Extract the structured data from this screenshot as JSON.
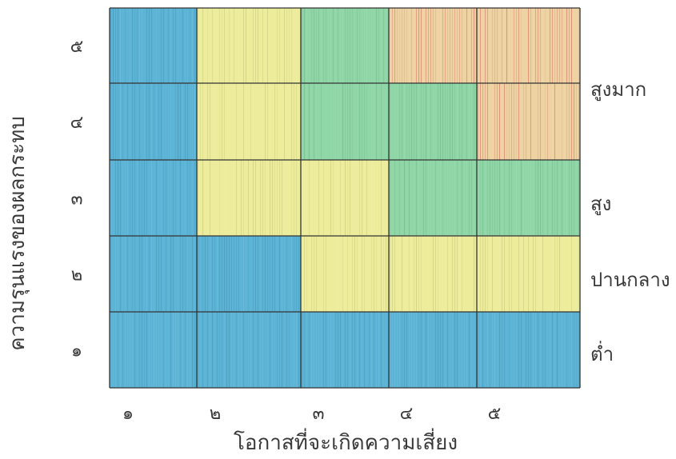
{
  "chart_data": {
    "type": "heatmap",
    "title": "",
    "xlabel": "โอกาสที่จะเกิดความเสี่ยง",
    "ylabel": "ความรุนแรงของผลกระทบ",
    "x_ticks": [
      "๑",
      "๒",
      "๓",
      "๔",
      "๕"
    ],
    "y_ticks": [
      "๑",
      "๒",
      "๓",
      "๔",
      "๕"
    ],
    "levels": [
      {
        "key": "low",
        "label": "ต่ำ",
        "color": "#5bb3d6"
      },
      {
        "key": "medium",
        "label": "ปานกลาง",
        "color": "#ecec9a"
      },
      {
        "key": "high",
        "label": "สูง",
        "color": "#8fd6a6"
      },
      {
        "key": "very_high",
        "label": "สูงมาก",
        "color": "#eed2a2",
        "stripe_color": "#dc8a7a"
      }
    ],
    "rows": [
      {
        "impact": "๕",
        "cells": [
          "low",
          "medium",
          "high",
          "very_high",
          "very_high"
        ]
      },
      {
        "impact": "๔",
        "cells": [
          "low",
          "medium",
          "high",
          "high",
          "very_high"
        ]
      },
      {
        "impact": "๓",
        "cells": [
          "low",
          "medium",
          "medium",
          "high",
          "high"
        ]
      },
      {
        "impact": "๒",
        "cells": [
          "low",
          "low",
          "medium",
          "medium",
          "medium"
        ]
      },
      {
        "impact": "๑",
        "cells": [
          "low",
          "low",
          "low",
          "low",
          "low"
        ]
      }
    ],
    "legend_placement": "right"
  }
}
